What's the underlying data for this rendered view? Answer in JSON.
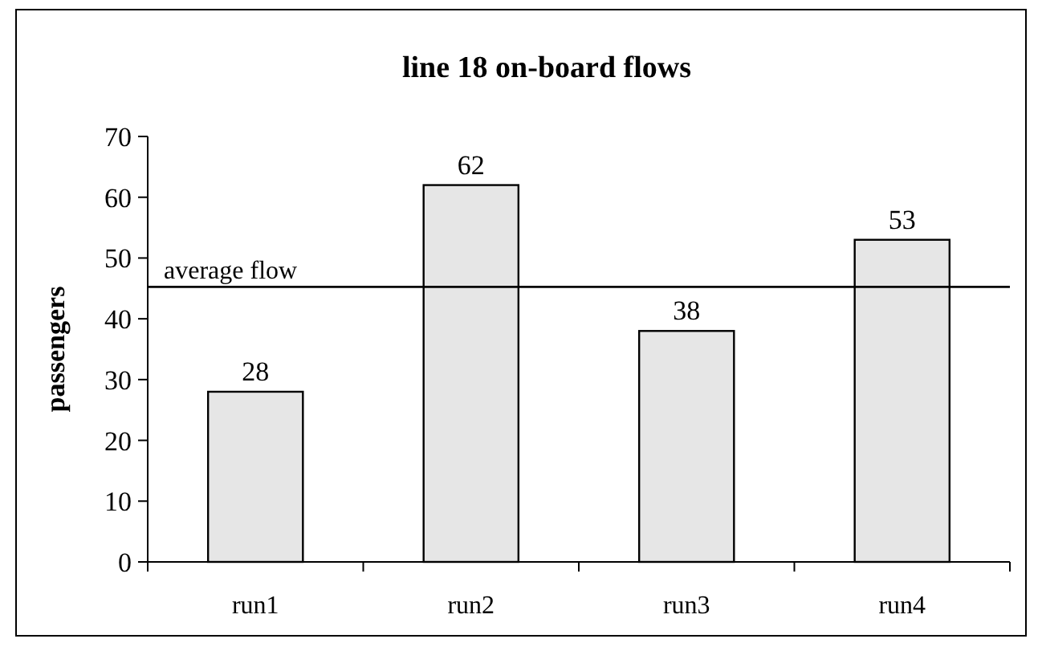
{
  "chart_data": {
    "type": "bar",
    "title": "line 18 on-board flows",
    "ylabel": "passengers",
    "categories": [
      "run1",
      "run2",
      "run3",
      "run4"
    ],
    "values": [
      28,
      62,
      38,
      53
    ],
    "color": "#e6e6e6",
    "data_labels": true,
    "ylim": [
      0,
      70
    ],
    "yticks": [
      0,
      10,
      20,
      30,
      40,
      50,
      60,
      70
    ],
    "grid": false,
    "ref_lines": [
      {
        "axis": "y",
        "value": 45.25,
        "label": "average flow",
        "color": "#000000",
        "line_style": "solid"
      }
    ]
  }
}
